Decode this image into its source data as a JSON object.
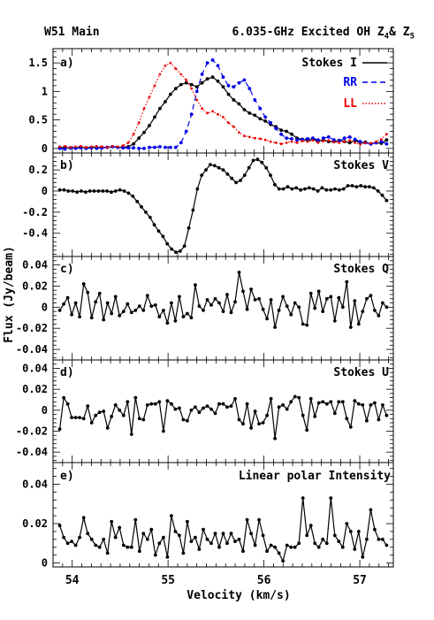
{
  "header": {
    "left": "W51 Main",
    "right_main": "6.035-GHz Excited OH Z",
    "right_sub1": "4",
    "right_amp": "& Z",
    "right_sub2": "5"
  },
  "axes": {
    "xlabel": "Velocity (km/s)",
    "ylabel": "Flux (Jy/beam)",
    "xlim": [
      53.8,
      57.35
    ],
    "xticks": [
      "54",
      "55",
      "56",
      "57"
    ]
  },
  "chart_data": [
    {
      "type": "line",
      "panel": "a)",
      "ylim": [
        -0.08,
        1.75
      ],
      "yticks": [
        "0",
        "0.5",
        "1",
        "1.5"
      ],
      "legend": "top-right",
      "series": [
        {
          "name": "Stokes I",
          "color": "#000000",
          "dash": "solid",
          "values": [
            0.02,
            0.01,
            0.01,
            0.01,
            0.02,
            0.01,
            0.02,
            0.01,
            0.02,
            0.02,
            0.03,
            0.02,
            0.02,
            0.03,
            0.08,
            0.18,
            0.28,
            0.4,
            0.55,
            0.7,
            0.82,
            0.95,
            1.05,
            1.12,
            1.15,
            1.12,
            1.08,
            1.15,
            1.22,
            1.25,
            1.18,
            1.08,
            0.95,
            0.85,
            0.78,
            0.68,
            0.62,
            0.58,
            0.52,
            0.48,
            0.42,
            0.38,
            0.32,
            0.3,
            0.25,
            0.18,
            0.16,
            0.14,
            0.16,
            0.13,
            0.15,
            0.12,
            0.12,
            0.14,
            0.12,
            0.1,
            0.14,
            0.1,
            0.11,
            0.08,
            0.1,
            0.09,
            0.15
          ]
        },
        {
          "name": "RR",
          "color": "#0000ee",
          "dash": "dashed",
          "values": [
            0.0,
            -0.01,
            0.01,
            0.0,
            0.01,
            0.0,
            0.01,
            0.0,
            0.01,
            0.02,
            0.03,
            0.02,
            0.01,
            0.01,
            0.01,
            0.0,
            0.0,
            0.02,
            0.02,
            0.03,
            0.02,
            0.02,
            0.02,
            0.1,
            0.3,
            0.6,
            1.0,
            1.3,
            1.5,
            1.55,
            1.45,
            1.25,
            1.1,
            1.08,
            1.15,
            1.2,
            1.05,
            0.85,
            0.7,
            0.55,
            0.45,
            0.35,
            0.25,
            0.18,
            0.17,
            0.15,
            0.16,
            0.17,
            0.18,
            0.15,
            0.18,
            0.2,
            0.15,
            0.13,
            0.18,
            0.2,
            0.16,
            0.12,
            0.1,
            0.08,
            0.1,
            0.12,
            0.08
          ]
        },
        {
          "name": "LL",
          "color": "#ee0000",
          "dash": "dotted",
          "values": [
            0.03,
            0.04,
            0.02,
            0.03,
            0.04,
            0.02,
            0.03,
            0.04,
            0.03,
            0.02,
            0.04,
            0.03,
            0.05,
            0.1,
            0.25,
            0.45,
            0.7,
            0.9,
            1.1,
            1.3,
            1.45,
            1.5,
            1.4,
            1.3,
            1.2,
            1.05,
            0.85,
            0.7,
            0.62,
            0.65,
            0.6,
            0.55,
            0.45,
            0.38,
            0.28,
            0.22,
            0.2,
            0.18,
            0.17,
            0.15,
            0.12,
            0.1,
            0.08,
            0.1,
            0.12,
            0.1,
            0.13,
            0.12,
            0.14,
            0.1,
            0.13,
            0.14,
            0.11,
            0.1,
            0.12,
            0.14,
            0.1,
            0.07,
            0.1,
            0.09,
            0.12,
            0.16,
            0.25
          ]
        }
      ]
    },
    {
      "type": "line",
      "panel": "b)",
      "ylim": [
        -0.62,
        0.36
      ],
      "yticks": [
        "-0.4",
        "-0.2",
        "0",
        "0.2"
      ],
      "series": [
        {
          "name": "Stokes V",
          "color": "#000000",
          "values": [
            0.01,
            0.01,
            0.0,
            0.0,
            -0.01,
            0.0,
            -0.01,
            0.0,
            0.0,
            0.0,
            0.0,
            0.0,
            -0.01,
            0.0,
            0.01,
            0.0,
            -0.02,
            -0.05,
            -0.1,
            -0.15,
            -0.2,
            -0.25,
            -0.32,
            -0.38,
            -0.43,
            -0.5,
            -0.55,
            -0.58,
            -0.57,
            -0.52,
            -0.35,
            -0.18,
            0.02,
            0.15,
            0.2,
            0.25,
            0.24,
            0.22,
            0.2,
            0.16,
            0.12,
            0.08,
            0.1,
            0.15,
            0.22,
            0.29,
            0.3,
            0.27,
            0.22,
            0.15,
            0.06,
            0.02,
            0.02,
            0.04,
            0.02,
            0.03,
            0.01,
            0.02,
            0.03,
            0.02,
            0.0,
            0.03,
            0.01,
            0.01,
            0.02,
            0.01,
            0.02,
            0.05,
            0.05,
            0.04,
            0.05,
            0.04,
            0.04,
            0.03,
            0.0,
            -0.04,
            -0.09
          ]
        }
      ]
    },
    {
      "type": "line",
      "panel": "c)",
      "ylim": [
        -0.05,
        0.048
      ],
      "yticks": [
        "-0.04",
        "-0.02",
        "0",
        "0.02",
        "0.04"
      ],
      "series": [
        {
          "name": "Stokes Q",
          "color": "#000000",
          "values": [
            -0.003,
            0.003,
            0.009,
            -0.007,
            0.004,
            -0.009,
            0.022,
            0.014,
            -0.01,
            0.005,
            0.013,
            -0.012,
            0.004,
            -0.006,
            0.01,
            -0.008,
            -0.004,
            0.003,
            -0.005,
            -0.003,
            0.001,
            -0.003,
            0.011,
            0.001,
            0.002,
            -0.009,
            -0.003,
            -0.015,
            0.004,
            -0.013,
            0.01,
            -0.009,
            -0.006,
            -0.01,
            0.021,
            0.001,
            -0.003,
            0.007,
            0.002,
            0.008,
            0.004,
            -0.004,
            0.012,
            -0.005,
            0.005,
            0.033,
            0.015,
            -0.002,
            0.017,
            0.007,
            0.008,
            -0.002,
            -0.011,
            0.007,
            -0.019,
            -0.003,
            0.01,
            0.001,
            -0.007,
            0.004,
            0.0,
            -0.016,
            -0.017,
            0.013,
            -0.001,
            0.015,
            -0.004,
            0.008,
            0.01,
            -0.013,
            0.009,
            0.0,
            0.024,
            -0.019,
            0.006,
            -0.016,
            -0.004,
            0.008,
            0.011,
            -0.003,
            -0.008,
            0.004,
            0.0
          ]
        }
      ]
    },
    {
      "type": "line",
      "panel": "d)",
      "ylim": [
        -0.05,
        0.048
      ],
      "yticks": [
        "-0.04",
        "-0.02",
        "0",
        "0.02",
        "0.04"
      ],
      "series": [
        {
          "name": "Stokes U",
          "color": "#000000",
          "values": [
            -0.018,
            0.012,
            0.006,
            -0.007,
            -0.007,
            -0.007,
            -0.008,
            0.004,
            -0.012,
            -0.005,
            -0.002,
            -0.001,
            -0.017,
            -0.006,
            0.005,
            0.0,
            -0.005,
            0.008,
            -0.023,
            0.012,
            -0.008,
            -0.009,
            0.005,
            0.006,
            0.006,
            0.008,
            -0.02,
            0.009,
            0.006,
            0.001,
            0.002,
            -0.009,
            -0.01,
            0.0,
            0.003,
            -0.002,
            0.002,
            0.004,
            0.001,
            -0.003,
            0.006,
            0.006,
            0.003,
            0.004,
            0.011,
            -0.009,
            -0.013,
            0.006,
            -0.017,
            -0.001,
            -0.013,
            -0.012,
            -0.005,
            0.011,
            -0.027,
            0.003,
            0.005,
            0.001,
            0.008,
            0.013,
            0.012,
            -0.005,
            -0.019,
            0.011,
            -0.006,
            0.007,
            0.008,
            0.006,
            0.008,
            -0.003,
            0.008,
            0.008,
            -0.008,
            -0.016,
            0.009,
            0.006,
            0.005,
            -0.01,
            0.005,
            0.007,
            -0.009,
            0.005,
            -0.005
          ]
        }
      ]
    },
    {
      "type": "line",
      "panel": "e)",
      "ylim": [
        -0.002,
        0.051
      ],
      "yticks": [
        "0",
        "0.02",
        "0.04"
      ],
      "series": [
        {
          "name": "Linear polar Intensity",
          "color": "#000000",
          "values": [
            0.019,
            0.013,
            0.01,
            0.011,
            0.009,
            0.013,
            0.023,
            0.015,
            0.012,
            0.009,
            0.008,
            0.012,
            0.005,
            0.021,
            0.013,
            0.018,
            0.009,
            0.008,
            0.008,
            0.022,
            0.006,
            0.015,
            0.012,
            0.017,
            0.004,
            0.01,
            0.013,
            0.003,
            0.024,
            0.016,
            0.014,
            0.005,
            0.021,
            0.011,
            0.013,
            0.007,
            0.017,
            0.012,
            0.01,
            0.015,
            0.008,
            0.015,
            0.01,
            0.015,
            0.011,
            0.012,
            0.006,
            0.022,
            0.015,
            0.009,
            0.022,
            0.014,
            0.006,
            0.009,
            0.008,
            0.005,
            0.001,
            0.009,
            0.008,
            0.008,
            0.01,
            0.033,
            0.014,
            0.019,
            0.01,
            0.008,
            0.012,
            0.01,
            0.033,
            0.014,
            0.011,
            0.008,
            0.02,
            0.016,
            0.007,
            0.016,
            0.003,
            0.012,
            0.027,
            0.017,
            0.012,
            0.012,
            0.009
          ]
        }
      ]
    }
  ],
  "labels": {
    "panel_a": "a)",
    "legend_i": "Stokes I",
    "legend_rr": "RR",
    "legend_ll": "LL",
    "panel_b": "b)",
    "stokes_v": "Stokes V",
    "panel_c": "c)",
    "stokes_q": "Stokes Q",
    "panel_d": "d)",
    "stokes_u": "Stokes U",
    "panel_e": "e)",
    "lin_pol": "Linear polar Intensity"
  }
}
